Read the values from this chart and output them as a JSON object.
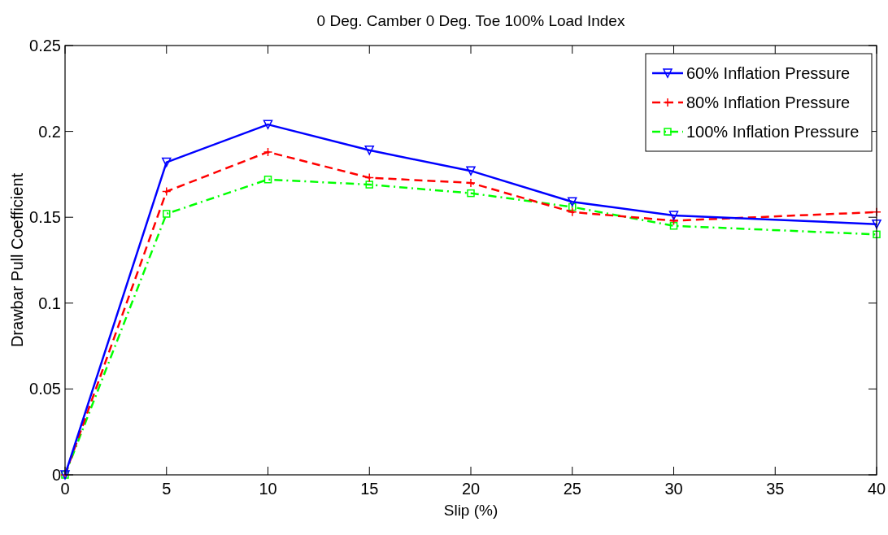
{
  "chart_data": {
    "type": "line",
    "title": "0 Deg. Camber 0 Deg. Toe 100% Load Index",
    "xlabel": "Slip (%)",
    "ylabel": "Drawbar Pull Coefficient",
    "x": [
      0,
      5,
      10,
      15,
      20,
      25,
      30,
      40
    ],
    "series": [
      {
        "name": "60% Inflation Pressure",
        "color": "#0000ff",
        "marker": "triangle",
        "line_style": "solid",
        "values": [
          0,
          0.182,
          0.204,
          0.189,
          0.177,
          0.159,
          0.151,
          0.146
        ]
      },
      {
        "name": "80% Inflation Pressure",
        "color": "#ff0000",
        "marker": "cross",
        "line_style": "dashed",
        "values": [
          0,
          0.165,
          0.188,
          0.173,
          0.17,
          0.153,
          0.148,
          0.153
        ]
      },
      {
        "name": "100% Inflation Pressure",
        "color": "#00ff00",
        "marker": "square",
        "line_style": "dotted",
        "values": [
          0,
          0.152,
          0.172,
          0.169,
          0.164,
          0.156,
          0.145,
          0.14
        ]
      }
    ],
    "xlim": [
      0,
      40
    ],
    "xticks": [
      0,
      5,
      10,
      15,
      20,
      25,
      30,
      35,
      40
    ],
    "ylim": [
      0,
      0.25
    ],
    "yticks": [
      0,
      0.05,
      0.1,
      0.15,
      0.2,
      0.25
    ],
    "grid": false,
    "legend": "top right"
  }
}
